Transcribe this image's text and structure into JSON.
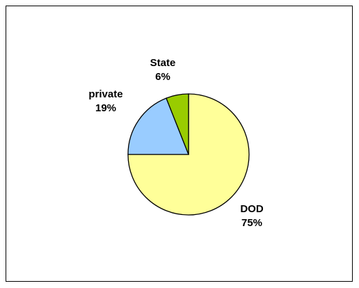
{
  "chart_data": {
    "type": "pie",
    "slices": [
      {
        "label": "DOD",
        "value": 75,
        "percent_label": "75%",
        "color": "#FFFF99"
      },
      {
        "label": "private",
        "value": 19,
        "percent_label": "19%",
        "color": "#99CCFF"
      },
      {
        "label": "State",
        "value": 6,
        "percent_label": "6%",
        "color": "#99CC00"
      }
    ],
    "start_angle_deg": 0,
    "direction": "clockwise",
    "legend": "none",
    "stroke_color": "#000000"
  }
}
